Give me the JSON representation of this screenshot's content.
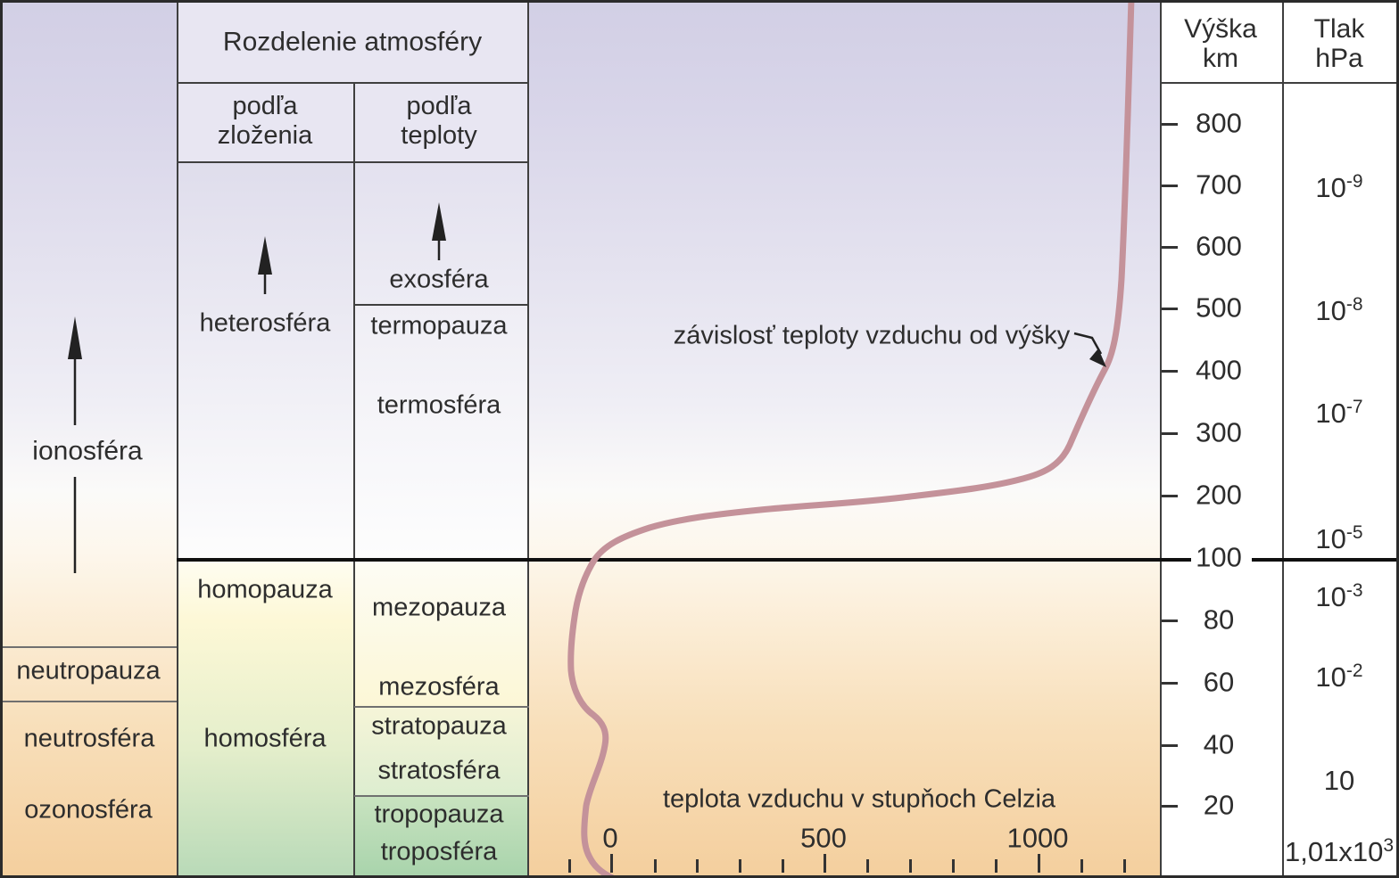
{
  "left_column": {
    "items": [
      "ionosféra",
      "neutropauza",
      "neutrosféra",
      "ozonosféra"
    ]
  },
  "table": {
    "title": "Rozdelenie atmosféry",
    "col1_header": "podľa\nzloženia",
    "col2_header": "podľa\nteploty",
    "col1": {
      "heterosfera": "heterosféra",
      "homopauza": "homopauza",
      "homosfera": "homosféra"
    },
    "col2": {
      "exosfera": "exosféra",
      "termopauza": "termopauza",
      "termosfera": "termosféra",
      "mezopauza": "mezopauza",
      "mezosfera": "mezosféra",
      "stratopauza": "stratopauza",
      "stratosfera": "stratosféra",
      "tropopauza": "tropopauza",
      "troposfera": "troposféra"
    }
  },
  "chart": {
    "annotation": "závislosť teploty vzduchu od výšky",
    "x_title": "teplota vzduchu v stupňoch Celzia",
    "x_tick_labels": [
      "0",
      "500",
      "1000"
    ]
  },
  "height_scale": {
    "header": "Výška\nkm",
    "values": [
      "800",
      "700",
      "600",
      "500",
      "400",
      "300",
      "200",
      "100",
      "80",
      "60",
      "40",
      "20"
    ]
  },
  "pressure_scale": {
    "header": "Tlak\nhPa",
    "values": [
      {
        "base": "10",
        "exp": "-9"
      },
      {
        "base": "10",
        "exp": "-8"
      },
      {
        "base": "10",
        "exp": "-7"
      },
      {
        "base": "10",
        "exp": "-5"
      },
      {
        "base": "10",
        "exp": "-3"
      },
      {
        "base": "10",
        "exp": "-2"
      },
      {
        "base": "10",
        "exp": ""
      },
      {
        "base": "1,01x10",
        "exp": "3"
      }
    ]
  },
  "colors": {
    "curve": "#c4929a",
    "lavender_top": "#d2cfe5",
    "orange_bottom": "#f4cf9e",
    "yellow_mid": "#fdf8d6",
    "green_bottom": "#a9d4ac",
    "line_dark": "#2b2b2b"
  },
  "chart_data": {
    "type": "line",
    "title": "závislosť teploty vzduchu od výšky",
    "xlabel": "teplota vzduchu v stupňoch Celzia",
    "ylabel": "Výška km",
    "x_ticks": [
      0,
      500,
      1000
    ],
    "x_minor_tick_step_c": 100,
    "x_range_c": [
      -100,
      1200
    ],
    "y_ticks_km": [
      800,
      700,
      600,
      500,
      400,
      300,
      200,
      100,
      80,
      60,
      40,
      20
    ],
    "y_scale_note": "broken scale: 100–800 km in 100 km steps and 20–100 km in 20 km steps drawn with equal spacing; bold line at 100 km",
    "series": [
      {
        "name": "teplota vzduchu (profil)",
        "points_height_km_temp_c": [
          [
            0,
            17
          ],
          [
            12,
            -60
          ],
          [
            30,
            -40
          ],
          [
            48,
            0
          ],
          [
            65,
            -40
          ],
          [
            88,
            -90
          ],
          [
            100,
            -35
          ],
          [
            150,
            250
          ],
          [
            200,
            660
          ],
          [
            250,
            980
          ],
          [
            300,
            1110
          ],
          [
            400,
            1155
          ],
          [
            500,
            1180
          ],
          [
            700,
            1200
          ],
          [
            800,
            1210
          ],
          [
            850,
            1220
          ]
        ]
      }
    ],
    "pressure_scale_hpa": [
      "10^-9",
      "10^-8",
      "10^-7",
      "10^-5",
      "10^-3",
      "10^-2",
      "10",
      "1,01x10^3"
    ],
    "grid": false,
    "legend": false
  }
}
